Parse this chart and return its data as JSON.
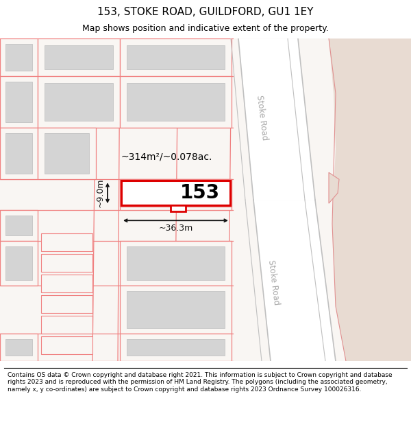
{
  "title": "153, STOKE ROAD, GUILDFORD, GU1 1EY",
  "subtitle": "Map shows position and indicative extent of the property.",
  "footer": "Contains OS data © Crown copyright and database right 2021. This information is subject to Crown copyright and database rights 2023 and is reproduced with the permission of HM Land Registry. The polygons (including the associated geometry, namely x, y co-ordinates) are subject to Crown copyright and database rights 2023 Ordnance Survey 100026316.",
  "map_bg": "#f9f6f3",
  "terrain_fill": "#e8dbd2",
  "road_fill": "#ffffff",
  "road_line_color": "#c0c0c0",
  "road_label_color": "#aaaaaa",
  "plot_bg": "#f9f6f3",
  "plot_edge": "#f08080",
  "building_fill": "#d4d4d4",
  "building_edge": "#c8c8c8",
  "highlight_fill": "#ffffff",
  "highlight_edge": "#dd0000",
  "dim_color": "#111111",
  "property_number": "153",
  "area_label": "~314m²/~0.078ac.",
  "width_label": "~36.3m",
  "height_label": "~9.0m",
  "road_label_upper": "Stoke Road",
  "road_label_lower": "Stoke Road",
  "title_fontsize": 11,
  "subtitle_fontsize": 9,
  "footer_fontsize": 6.5,
  "number_fontsize": 20,
  "area_fontsize": 10,
  "dim_fontsize": 9,
  "road_label_fontsize": 8.5
}
